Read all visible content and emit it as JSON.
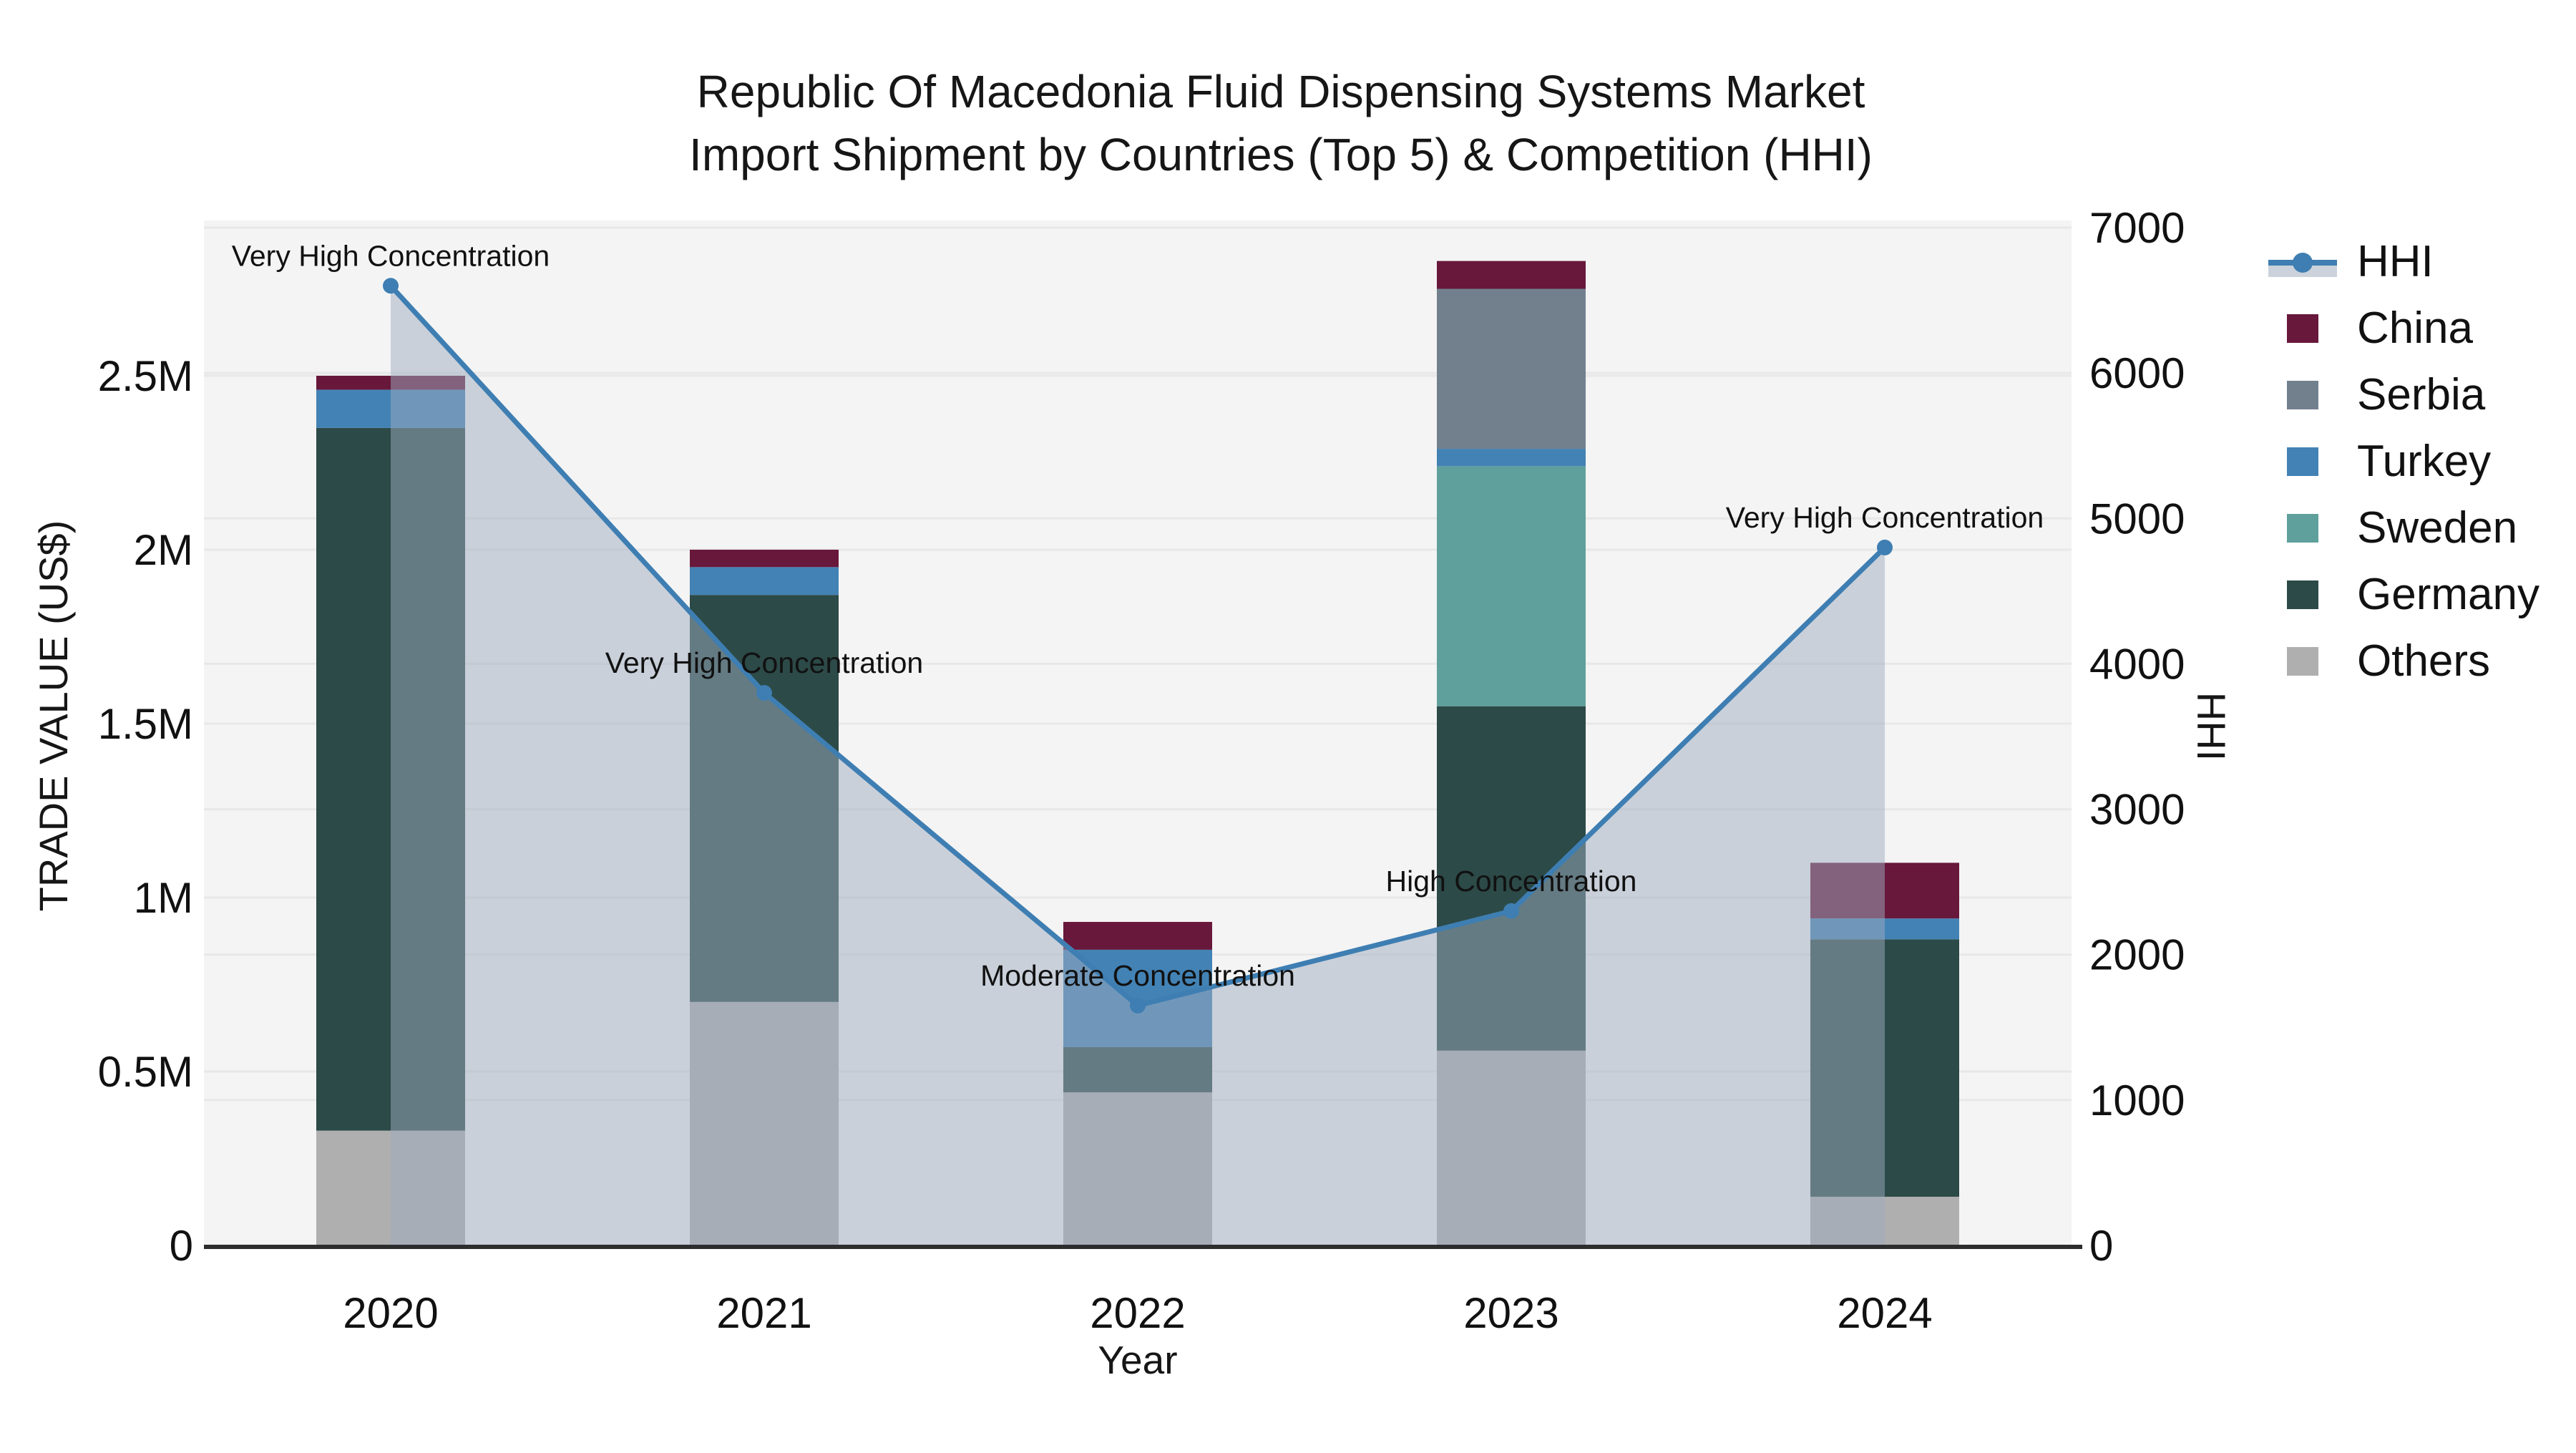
{
  "title": {
    "line1": "Republic Of Macedonia Fluid Dispensing Systems Market",
    "line2": "Import Shipment by Countries (Top 5) & Competition (HHI)"
  },
  "axes": {
    "x_title": "Year",
    "y_left_title": "TRADE VALUE (US$)",
    "y_right_title": "HHI"
  },
  "legend": {
    "items": [
      {
        "label": "HHI",
        "type": "line",
        "color": "#3E7EB2"
      },
      {
        "label": "China",
        "type": "patch",
        "color": "#68183B"
      },
      {
        "label": "Serbia",
        "type": "patch",
        "color": "#72808E"
      },
      {
        "label": "Turkey",
        "type": "patch",
        "color": "#4382B4"
      },
      {
        "label": "Sweden",
        "type": "patch",
        "color": "#5FA09C"
      },
      {
        "label": "Germany",
        "type": "patch",
        "color": "#2C4A47"
      },
      {
        "label": "Others",
        "type": "patch",
        "color": "#AFAFAF"
      }
    ]
  },
  "chart_data": {
    "type": "bar-line-combo",
    "title": "Republic Of Macedonia Fluid Dispensing Systems Market Import Shipment by Countries (Top 5) & Competition (HHI)",
    "xlabel": "Year",
    "ylabel_left": "TRADE VALUE (US$)",
    "ylabel_right": "HHI",
    "unit_left": "million US$",
    "categories": [
      "2020",
      "2021",
      "2022",
      "2023",
      "2024"
    ],
    "bar_stack_order": "bottom to top",
    "series": [
      {
        "name": "Others",
        "color": "#AFAFAF",
        "values": [
          0.33,
          0.7,
          0.44,
          0.56,
          0.14
        ]
      },
      {
        "name": "Germany",
        "color": "#2C4A47",
        "values": [
          2.02,
          1.17,
          0.13,
          0.99,
          0.74
        ]
      },
      {
        "name": "Sweden",
        "color": "#5FA09C",
        "values": [
          0,
          0,
          0,
          0.69,
          0
        ]
      },
      {
        "name": "Turkey",
        "color": "#4382B4",
        "values": [
          0.11,
          0.08,
          0.28,
          0.05,
          0.06
        ]
      },
      {
        "name": "Serbia",
        "color": "#72808E",
        "values": [
          0,
          0,
          0,
          0.46,
          0
        ]
      },
      {
        "name": "China",
        "color": "#68183B",
        "values": [
          0.04,
          0.05,
          0.08,
          0.08,
          0.16
        ]
      }
    ],
    "bar_totals": [
      2.5,
      2.0,
      0.93,
      2.83,
      1.1
    ],
    "line_series": {
      "name": "HHI",
      "color": "#3E7EB2",
      "area_fill": "rgba(157,171,191,0.5)",
      "values": [
        6600,
        3800,
        1650,
        2300,
        4800
      ]
    },
    "annotations": [
      {
        "x": "2020",
        "text": "Very High Concentration"
      },
      {
        "x": "2021",
        "text": "Very High Concentration"
      },
      {
        "x": "2022",
        "text": "Moderate Concentration"
      },
      {
        "x": "2023",
        "text": "High Concentration"
      },
      {
        "x": "2024",
        "text": "Very High Concentration"
      }
    ],
    "y_left_ticks": [
      {
        "v": 0,
        "label": "0"
      },
      {
        "v": 0.5,
        "label": "0.5M"
      },
      {
        "v": 1,
        "label": "1M"
      },
      {
        "v": 1.5,
        "label": "1.5M"
      },
      {
        "v": 2,
        "label": "2M"
      },
      {
        "v": 2.5,
        "label": "2.5M"
      }
    ],
    "y_right_ticks": [
      {
        "v": 0,
        "label": "0"
      },
      {
        "v": 1000,
        "label": "1000"
      },
      {
        "v": 2000,
        "label": "2000"
      },
      {
        "v": 3000,
        "label": "3000"
      },
      {
        "v": 4000,
        "label": "4000"
      },
      {
        "v": 5000,
        "label": "5000"
      },
      {
        "v": 6000,
        "label": "6000"
      },
      {
        "v": 7000,
        "label": "7000"
      }
    ],
    "y_left_range": [
      0,
      2.95
    ],
    "y_right_range": [
      0,
      7050
    ],
    "grid": true,
    "legend_position": "right",
    "plot_bg": "#F4F4F4",
    "grid_color": "#E8E8E8",
    "spine_color": "#2D2D2D"
  }
}
